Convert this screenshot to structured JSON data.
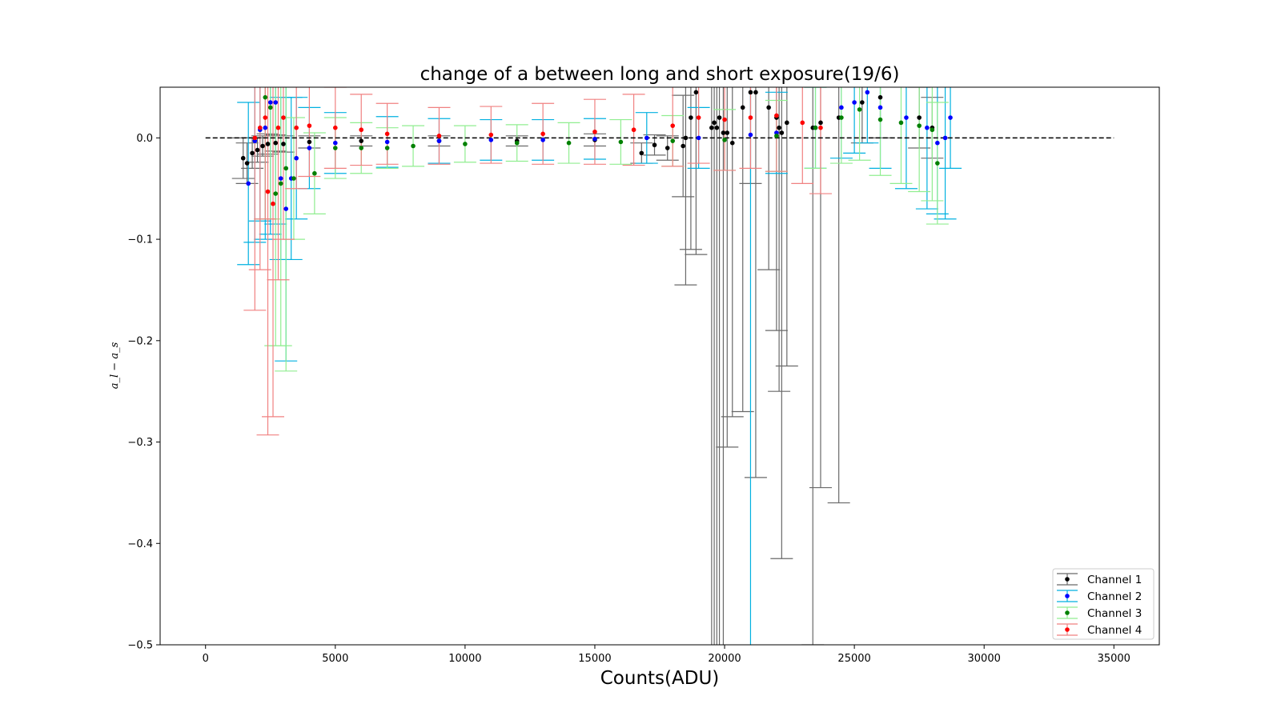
{
  "chart_data": {
    "type": "scatter",
    "title": "change of a between long and short exposure(19/6)",
    "xlabel": "Counts(ADU)",
    "ylabel": "a_l − a_s",
    "xlim": [
      -1750,
      36750
    ],
    "ylim": [
      -0.5,
      0.05
    ],
    "x_ticks": [
      0,
      5000,
      10000,
      15000,
      20000,
      25000,
      30000,
      35000
    ],
    "y_ticks": [
      0.0,
      -0.1,
      -0.2,
      -0.3,
      -0.4,
      -0.5
    ],
    "x_tick_labels": [
      "0",
      "5000",
      "10000",
      "15000",
      "20000",
      "25000",
      "30000",
      "35000"
    ],
    "y_tick_labels": [
      "0.0",
      "−0.1",
      "−0.2",
      "−0.3",
      "−0.4",
      "−0.5"
    ],
    "reference_line": {
      "y": 0.0,
      "x_range": [
        0,
        35000
      ],
      "style": "dashed",
      "color": "#000000"
    },
    "legend": {
      "placement": "lower-right"
    },
    "grid": false,
    "series": [
      {
        "name": "Channel 1",
        "marker_color": "#000000",
        "errorbar_color": "#696969",
        "points": [
          [
            1450,
            -0.02,
            0.02
          ],
          [
            1600,
            -0.025,
            0.02
          ],
          [
            1800,
            -0.015,
            0.015
          ],
          [
            2000,
            -0.012,
            0.012
          ],
          [
            2200,
            -0.008,
            0.01
          ],
          [
            2400,
            -0.006,
            0.01
          ],
          [
            2700,
            -0.005,
            0.008
          ],
          [
            3000,
            -0.006,
            0.008
          ],
          [
            4000,
            -0.004,
            0.006
          ],
          [
            6000,
            -0.003,
            0.005
          ],
          [
            9000,
            -0.003,
            0.005
          ],
          [
            12000,
            -0.003,
            0.005
          ],
          [
            15000,
            -0.002,
            0.006
          ],
          [
            16800,
            -0.015,
            0.01
          ],
          [
            17300,
            -0.007,
            0.01
          ],
          [
            17800,
            -0.01,
            0.012
          ],
          [
            18400,
            -0.008,
            0.05
          ],
          [
            18500,
            0.0,
            0.145
          ],
          [
            18700,
            0.02,
            0.13
          ],
          [
            18900,
            0.045,
            0.16
          ],
          [
            19500,
            0.01,
            0.52
          ],
          [
            19600,
            0.015,
            0.53
          ],
          [
            19700,
            0.01,
            0.52
          ],
          [
            19800,
            0.02,
            0.53
          ],
          [
            19950,
            0.005,
            0.55
          ],
          [
            20100,
            0.005,
            0.31
          ],
          [
            20300,
            -0.005,
            0.27
          ],
          [
            20700,
            0.03,
            0.3
          ],
          [
            21000,
            0.045,
            0.09
          ],
          [
            21200,
            0.045,
            0.38
          ],
          [
            21700,
            0.03,
            0.16
          ],
          [
            22000,
            0.02,
            0.21
          ],
          [
            22100,
            0.01,
            0.26
          ],
          [
            22200,
            0.005,
            0.42
          ],
          [
            22400,
            0.015,
            0.24
          ],
          [
            23400,
            0.01,
            0.51
          ],
          [
            23700,
            0.015,
            0.36
          ],
          [
            24400,
            0.02,
            0.38
          ],
          [
            25300,
            0.035,
            0.04
          ],
          [
            26000,
            0.04,
            0.04
          ],
          [
            27500,
            0.02,
            0.03
          ],
          [
            28000,
            0.01,
            0.03
          ]
        ]
      },
      {
        "name": "Channel 2",
        "marker_color": "#0000ff",
        "errorbar_color": "#00b0e0",
        "points": [
          [
            1650,
            -0.045,
            0.08
          ],
          [
            1900,
            -0.003,
            0.1
          ],
          [
            2100,
            0.008,
            0.09
          ],
          [
            2300,
            0.01,
            0.11
          ],
          [
            2500,
            0.035,
            0.13
          ],
          [
            2700,
            0.035,
            0.12
          ],
          [
            2900,
            -0.04,
            0.08
          ],
          [
            3100,
            -0.07,
            0.15
          ],
          [
            3300,
            -0.04,
            0.08
          ],
          [
            3500,
            -0.02,
            0.06
          ],
          [
            4000,
            -0.01,
            0.04
          ],
          [
            5000,
            -0.005,
            0.03
          ],
          [
            7000,
            -0.004,
            0.025
          ],
          [
            9000,
            -0.003,
            0.022
          ],
          [
            11000,
            -0.002,
            0.02
          ],
          [
            13000,
            -0.002,
            0.02
          ],
          [
            15000,
            -0.001,
            0.02
          ],
          [
            17000,
            0.0,
            0.025
          ],
          [
            19000,
            0.0,
            0.03
          ],
          [
            21000,
            0.003,
            0.52
          ],
          [
            22000,
            0.005,
            0.04
          ],
          [
            23500,
            0.01,
            0.04
          ],
          [
            24500,
            0.03,
            0.05
          ],
          [
            25000,
            0.035,
            0.05
          ],
          [
            25500,
            0.045,
            0.05
          ],
          [
            26000,
            0.03,
            0.06
          ],
          [
            27000,
            0.02,
            0.07
          ],
          [
            27800,
            0.01,
            0.08
          ],
          [
            28200,
            -0.005,
            0.07
          ],
          [
            28500,
            0.0,
            0.08
          ],
          [
            28700,
            0.02,
            0.05
          ]
        ]
      },
      {
        "name": "Channel 3",
        "marker_color": "#008000",
        "errorbar_color": "#90ee90",
        "points": [
          [
            2300,
            0.04,
            0.12
          ],
          [
            2500,
            0.03,
            0.11
          ],
          [
            2700,
            -0.055,
            0.15
          ],
          [
            2900,
            -0.045,
            0.16
          ],
          [
            3100,
            -0.03,
            0.2
          ],
          [
            3400,
            -0.04,
            0.06
          ],
          [
            4200,
            -0.035,
            0.04
          ],
          [
            5000,
            -0.01,
            0.03
          ],
          [
            6000,
            -0.01,
            0.025
          ],
          [
            7000,
            -0.01,
            0.02
          ],
          [
            8000,
            -0.008,
            0.02
          ],
          [
            10000,
            -0.006,
            0.018
          ],
          [
            12000,
            -0.005,
            0.018
          ],
          [
            14000,
            -0.005,
            0.02
          ],
          [
            16000,
            -0.004,
            0.022
          ],
          [
            18000,
            -0.003,
            0.025
          ],
          [
            20000,
            -0.002,
            0.03
          ],
          [
            22000,
            0.002,
            0.035
          ],
          [
            23500,
            0.01,
            0.04
          ],
          [
            24500,
            0.02,
            0.045
          ],
          [
            25200,
            0.028,
            0.05
          ],
          [
            26000,
            0.018,
            0.055
          ],
          [
            26800,
            0.015,
            0.06
          ],
          [
            27500,
            0.012,
            0.065
          ],
          [
            28000,
            0.008,
            0.07
          ],
          [
            28200,
            -0.025,
            0.06
          ]
        ]
      },
      {
        "name": "Channel 4",
        "marker_color": "#ff0000",
        "errorbar_color": "#f08080",
        "points": [
          [
            1900,
            0.0,
            0.17
          ],
          [
            2100,
            0.01,
            0.14
          ],
          [
            2300,
            0.02,
            0.1
          ],
          [
            2400,
            -0.053,
            0.24
          ],
          [
            2600,
            -0.065,
            0.21
          ],
          [
            2800,
            0.01,
            0.15
          ],
          [
            3000,
            0.02,
            0.12
          ],
          [
            3500,
            0.01,
            0.06
          ],
          [
            4000,
            0.012,
            0.05
          ],
          [
            5000,
            0.01,
            0.04
          ],
          [
            6000,
            0.008,
            0.035
          ],
          [
            7000,
            0.004,
            0.03
          ],
          [
            9000,
            0.002,
            0.028
          ],
          [
            11000,
            0.003,
            0.028
          ],
          [
            13000,
            0.004,
            0.03
          ],
          [
            15000,
            0.006,
            0.032
          ],
          [
            16500,
            0.008,
            0.035
          ],
          [
            18000,
            0.012,
            0.04
          ],
          [
            19000,
            0.02,
            0.045
          ],
          [
            20000,
            0.018,
            0.05
          ],
          [
            21000,
            0.02,
            0.05
          ],
          [
            22000,
            0.022,
            0.055
          ],
          [
            23000,
            0.015,
            0.06
          ],
          [
            23700,
            0.01,
            0.065
          ]
        ]
      }
    ]
  }
}
